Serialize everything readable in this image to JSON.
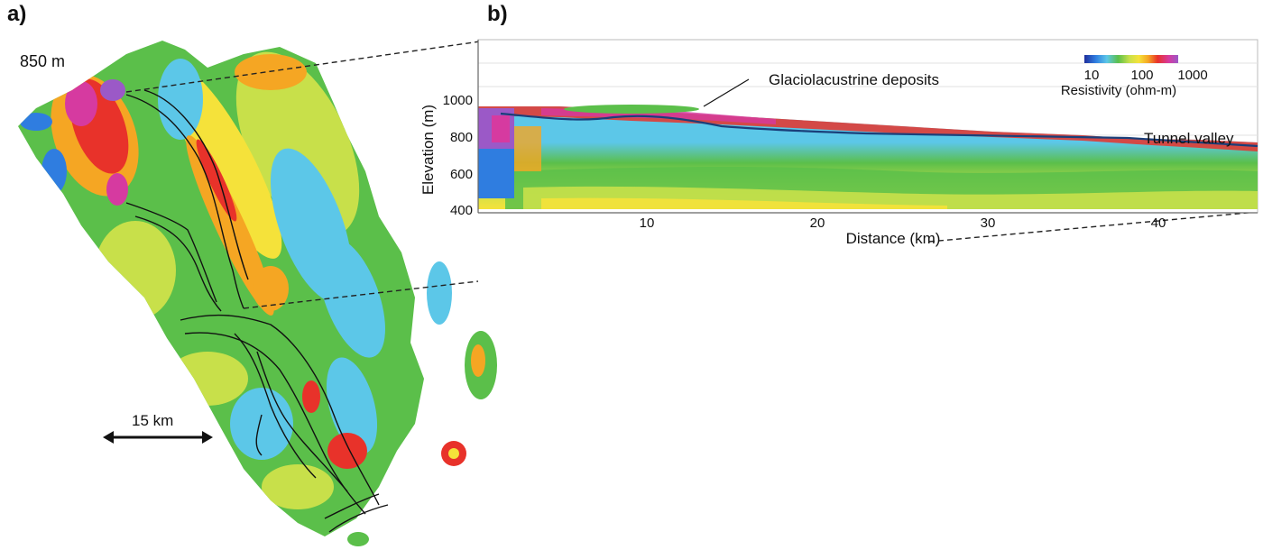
{
  "panel_a": {
    "label": "a)",
    "elevation_slice": "850 m",
    "scale_bar_label": "15 km"
  },
  "panel_b": {
    "label": "b)",
    "y_axis_label": "Elevation (m)",
    "x_axis_label": "Distance (km)",
    "y_ticks": [
      "1000",
      "800",
      "600",
      "400"
    ],
    "x_ticks": [
      "10",
      "20",
      "30",
      "40"
    ],
    "annotation_deposits": "Glaciolacustrine deposits",
    "annotation_valley": "Tunnel valley",
    "colorbar": {
      "title": "Resistivity (ohm-m)",
      "ticks": [
        "10",
        "100",
        "1000"
      ],
      "colors": [
        "#1f2e9c",
        "#2f7de0",
        "#5cc7e8",
        "#5bbf4a",
        "#c8e04a",
        "#f5e23a",
        "#f5a623",
        "#e8322a",
        "#d63aa0",
        "#9b59c7"
      ]
    }
  }
}
